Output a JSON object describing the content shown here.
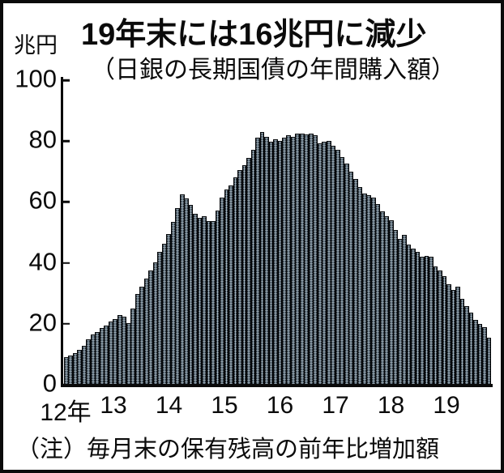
{
  "header": {
    "title": "19年末には16兆円に減少",
    "subtitle": "（日銀の長期国債の年間購入額）",
    "unit_label": "兆円"
  },
  "footer": {
    "note": "（注）毎月末の保有残高の前年比増加額"
  },
  "colors": {
    "frame": "#0a0a0a",
    "text": "#0b0b0b",
    "bar_dark": "#0d1216",
    "bar_mid": "#45535e",
    "bar_light": "#8da2b0",
    "background": "#ffffff"
  },
  "chart_data": {
    "type": "bar",
    "title": "19年末には16兆円に減少",
    "subtitle": "（日銀の長期国債の年間購入額）",
    "ylabel": "兆円",
    "xlabel": "",
    "ylim": [
      0,
      100
    ],
    "yticks": [
      0,
      20,
      40,
      60,
      80,
      100
    ],
    "x_tick_labels": [
      "12年",
      "13",
      "14",
      "15",
      "16",
      "17",
      "18",
      "19"
    ],
    "frequency": "monthly",
    "start_month": "2012-01",
    "end_month": "2019-12",
    "note": "（注）毎月末の保有残高の前年比増加額",
    "grid": false,
    "legend": false,
    "values": [
      9.0,
      9.7,
      10.5,
      11.5,
      12.8,
      15.0,
      16.4,
      17.3,
      18.6,
      19.5,
      20.8,
      21.5,
      23.0,
      22.3,
      20.1,
      24.9,
      29.8,
      32.3,
      34.9,
      37.4,
      40.1,
      43.7,
      46.4,
      49.6,
      53.5,
      58.0,
      62.5,
      61.2,
      59.0,
      56.2,
      54.9,
      55.3,
      53.6,
      53.8,
      57.3,
      61.5,
      64.0,
      65.5,
      68.0,
      70.5,
      72.0,
      74.5,
      77.0,
      81.0,
      83.0,
      81.5,
      79.8,
      80.5,
      80.1,
      81.0,
      81.9,
      81.5,
      82.4,
      82.4,
      82.2,
      82.5,
      81.9,
      79.3,
      79.7,
      80.1,
      78.4,
      77.0,
      74.7,
      72.5,
      69.9,
      67.6,
      65.0,
      62.8,
      62.3,
      61.4,
      59.2,
      57.0,
      55.2,
      53.9,
      50.8,
      48.0,
      49.3,
      45.9,
      44.6,
      43.7,
      41.9,
      42.4,
      41.9,
      38.8,
      37.5,
      35.6,
      33.0,
      31.0,
      32.3,
      28.3,
      25.8,
      23.8,
      21.4,
      20.0,
      19.0,
      15.5
    ]
  }
}
